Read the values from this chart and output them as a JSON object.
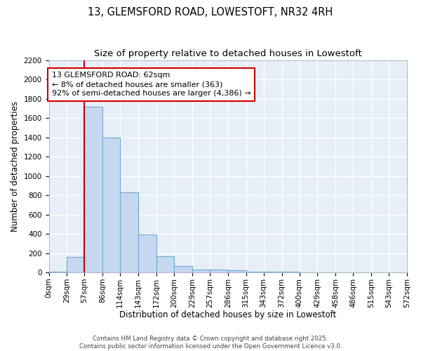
{
  "title": "13, GLEMSFORD ROAD, LOWESTOFT, NR32 4RH",
  "subtitle": "Size of property relative to detached houses in Lowestoft",
  "xlabel": "Distribution of detached houses by size in Lowestoft",
  "ylabel": "Number of detached properties",
  "bin_edges": [
    0,
    29,
    57,
    86,
    114,
    143,
    172,
    200,
    229,
    257,
    286,
    315,
    343,
    372,
    400,
    429,
    458,
    486,
    515,
    543,
    572
  ],
  "bar_heights": [
    10,
    160,
    1720,
    1400,
    830,
    390,
    170,
    65,
    30,
    30,
    25,
    5,
    5,
    5,
    3,
    2,
    2,
    1,
    1,
    0
  ],
  "bar_color": "#c5d8f0",
  "bar_edge_color": "#6aaad4",
  "ylim": [
    0,
    2200
  ],
  "yticks": [
    0,
    200,
    400,
    600,
    800,
    1000,
    1200,
    1400,
    1600,
    1800,
    2000,
    2200
  ],
  "property_line_x": 57,
  "property_line_color": "#cc0000",
  "annotation_line1": "13 GLEMSFORD ROAD: 62sqm",
  "annotation_line2": "← 8% of detached houses are smaller (363)",
  "annotation_line3": "92% of semi-detached houses are larger (4,386) →",
  "annotation_box_color": "#cc0000",
  "annotation_text_color": "#000000",
  "background_color": "#e8eef8",
  "grid_color": "#ffffff",
  "footer_line1": "Contains HM Land Registry data © Crown copyright and database right 2025.",
  "footer_line2": "Contains public sector information licensed under the Open Government Licence v3.0.",
  "title_fontsize": 10.5,
  "subtitle_fontsize": 9.5,
  "tick_label_fontsize": 7.5,
  "ylabel_fontsize": 8.5,
  "xlabel_fontsize": 8.5,
  "annotation_fontsize": 8.0
}
